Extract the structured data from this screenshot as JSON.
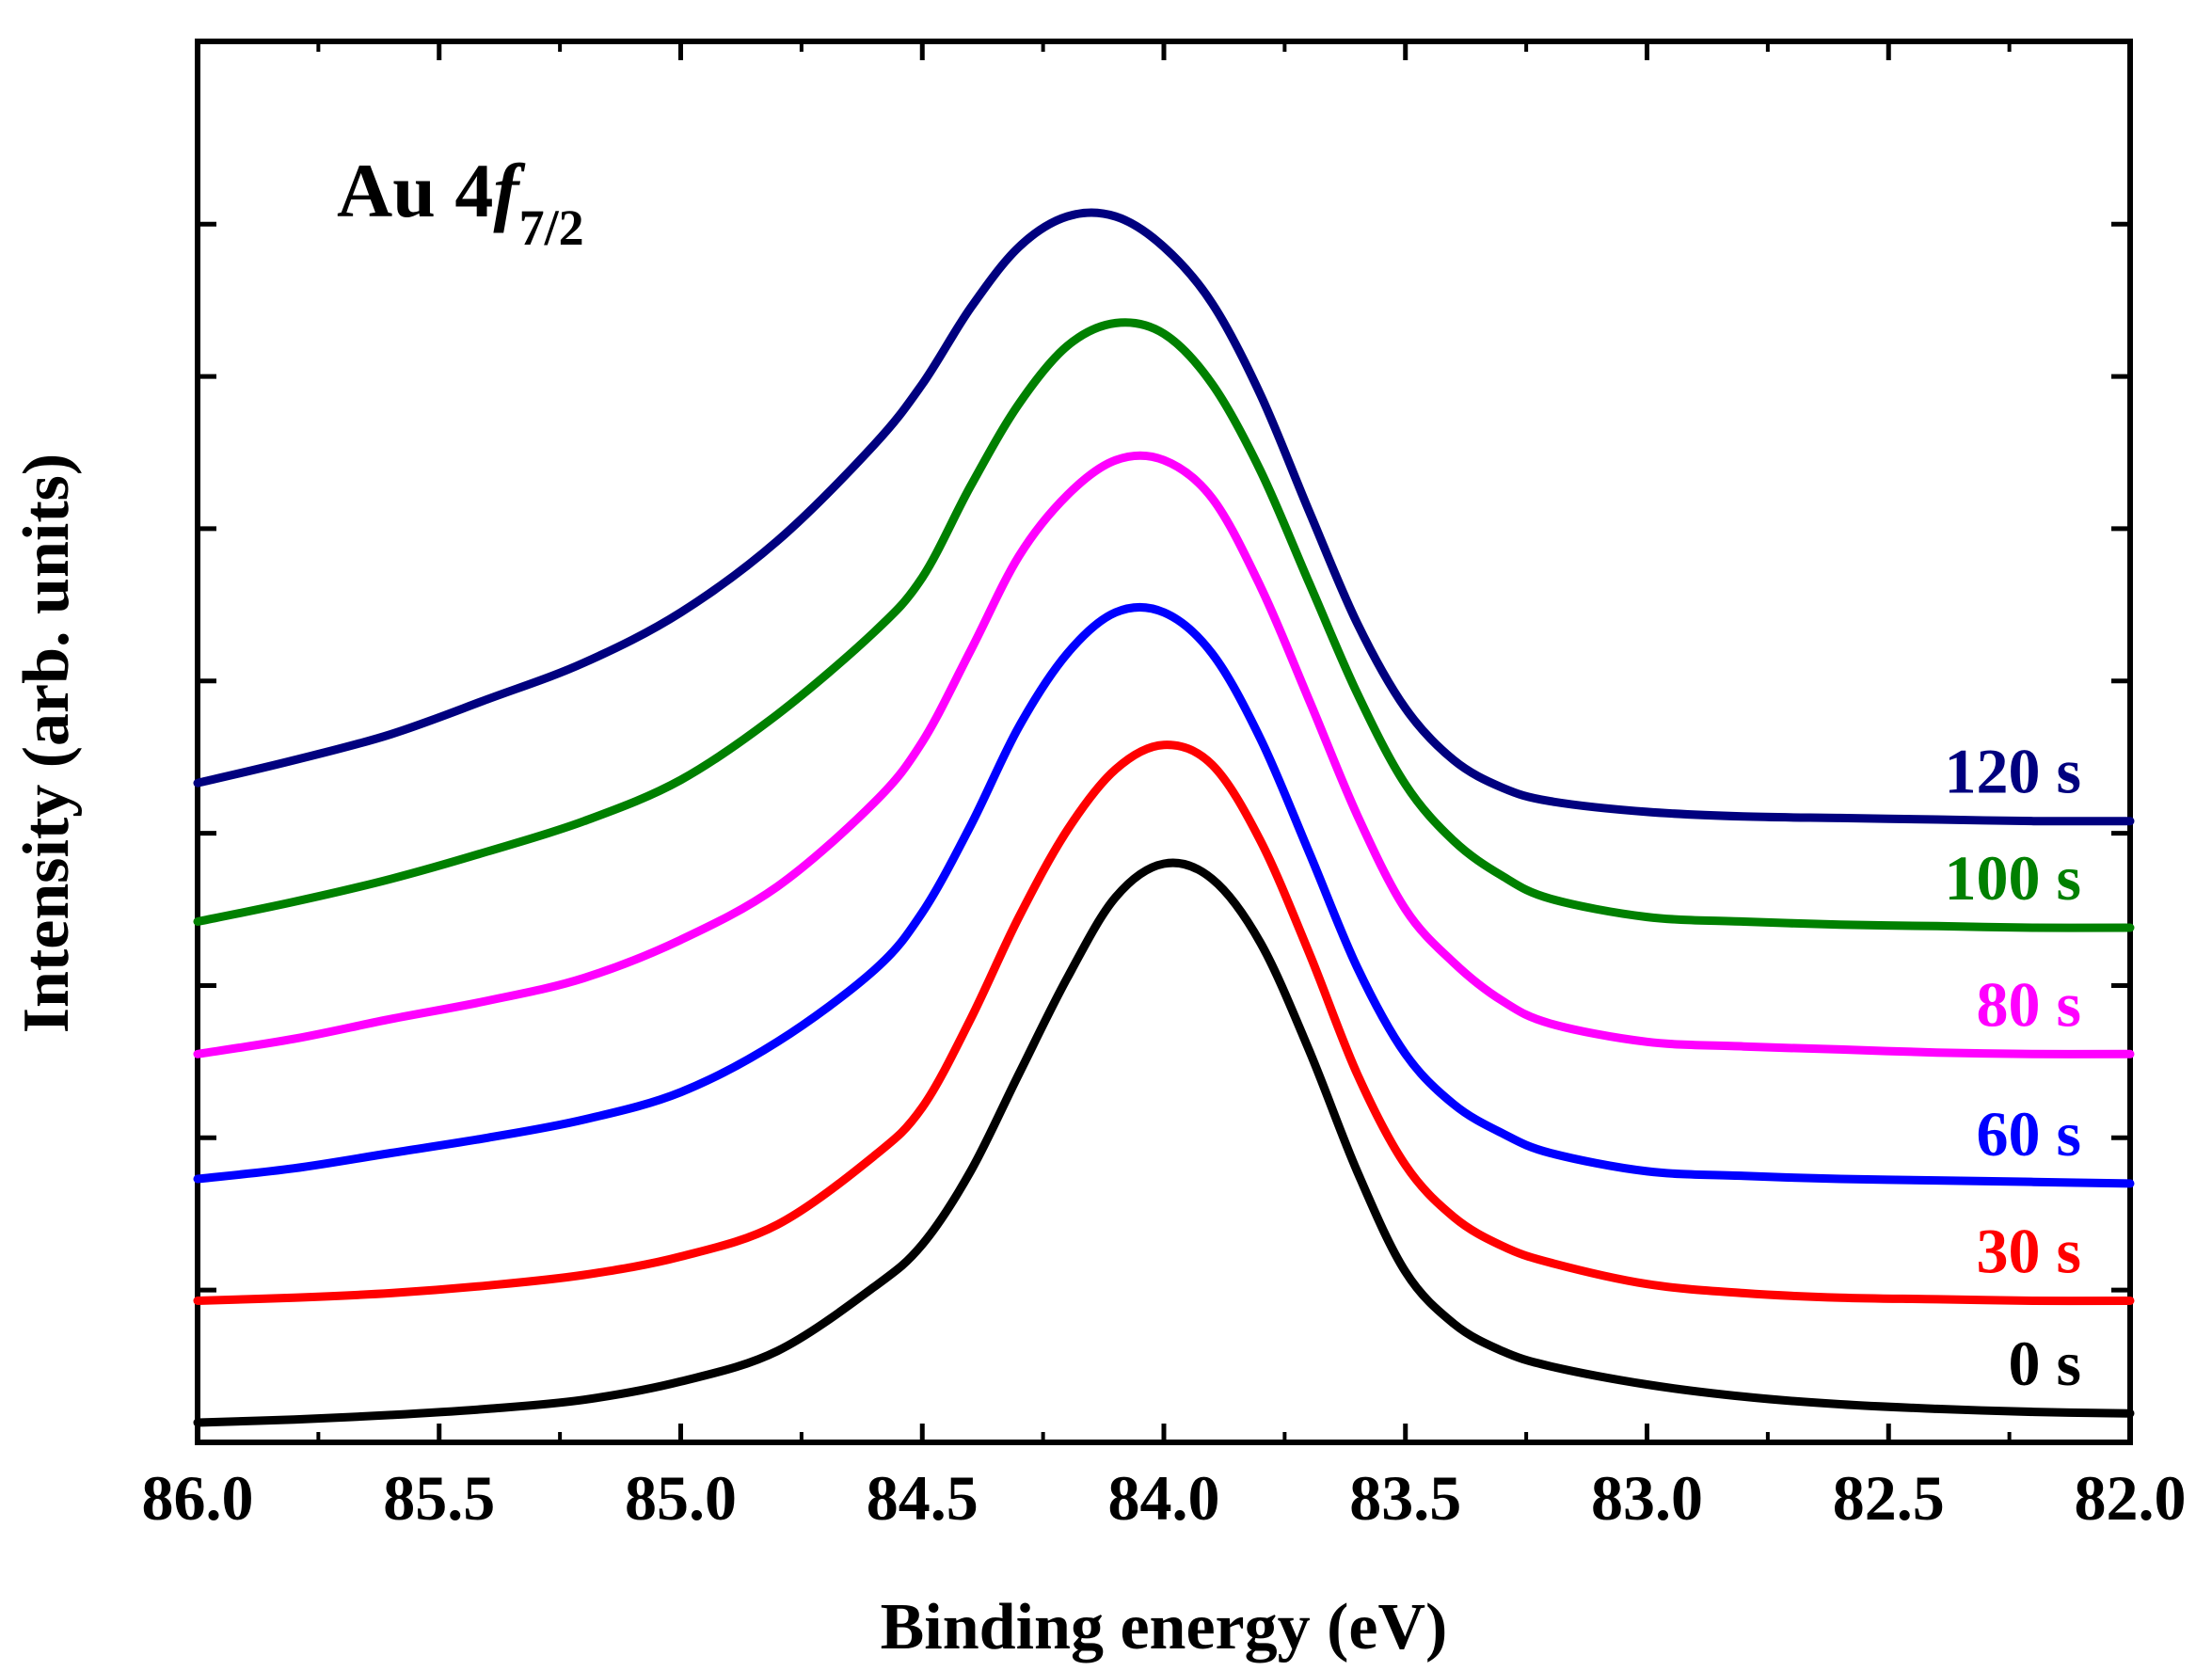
{
  "chart_data": {
    "type": "line",
    "title": "",
    "annotation": {
      "main": "Au 4",
      "italic": "f",
      "subscript": "7/2"
    },
    "xlabel": "Binding energy (eV)",
    "ylabel": "Intensity (arb. units)",
    "xlim": [
      86.0,
      82.0
    ],
    "ylim": [
      0.0,
      9.2
    ],
    "x_reversed": true,
    "xticks": [
      "86.0",
      "85.5",
      "85.0",
      "84.5",
      "84.0",
      "83.5",
      "83.0",
      "82.5",
      "82.0"
    ],
    "y_tick_values": [
      1,
      2,
      3,
      4,
      5,
      6,
      7,
      8
    ],
    "x": [
      86.0,
      85.8,
      85.6,
      85.4,
      85.2,
      85.0,
      84.8,
      84.6,
      84.5,
      84.4,
      84.3,
      84.2,
      84.1,
      84.0,
      83.9,
      83.8,
      83.7,
      83.6,
      83.5,
      83.4,
      83.3,
      83.2,
      83.0,
      82.8,
      82.6,
      82.4,
      82.2,
      82.0
    ],
    "series": [
      {
        "name": "0 s",
        "color": "#000000",
        "values": [
          0.13,
          0.15,
          0.18,
          0.22,
          0.28,
          0.4,
          0.6,
          1.02,
          1.3,
          1.78,
          2.42,
          3.05,
          3.58,
          3.8,
          3.7,
          3.28,
          2.58,
          1.78,
          1.12,
          0.78,
          0.6,
          0.5,
          0.38,
          0.3,
          0.25,
          0.22,
          0.2,
          0.19
        ]
      },
      {
        "name": "30 s",
        "color": "#ff0000",
        "values": [
          0.93,
          0.95,
          0.98,
          1.03,
          1.1,
          1.22,
          1.43,
          1.88,
          2.2,
          2.78,
          3.45,
          4.02,
          4.42,
          4.58,
          4.45,
          3.95,
          3.22,
          2.42,
          1.82,
          1.48,
          1.29,
          1.18,
          1.04,
          0.98,
          0.95,
          0.94,
          0.93,
          0.93
        ]
      },
      {
        "name": "60 s",
        "color": "#0000ff",
        "values": [
          1.73,
          1.8,
          1.9,
          2.0,
          2.12,
          2.3,
          2.63,
          3.1,
          3.48,
          4.05,
          4.7,
          5.18,
          5.45,
          5.45,
          5.18,
          4.62,
          3.88,
          3.12,
          2.55,
          2.22,
          2.03,
          1.9,
          1.78,
          1.75,
          1.73,
          1.72,
          1.71,
          1.7
        ]
      },
      {
        "name": "80 s",
        "color": "#ff00ff",
        "values": [
          2.55,
          2.65,
          2.78,
          2.9,
          3.05,
          3.3,
          3.65,
          4.2,
          4.6,
          5.2,
          5.82,
          6.22,
          6.45,
          6.45,
          6.2,
          5.62,
          4.88,
          4.12,
          3.5,
          3.15,
          2.9,
          2.75,
          2.63,
          2.6,
          2.58,
          2.56,
          2.55,
          2.55
        ]
      },
      {
        "name": "100 s",
        "color": "#008000",
        "values": [
          3.42,
          3.55,
          3.7,
          3.88,
          4.08,
          4.35,
          4.78,
          5.32,
          5.68,
          6.28,
          6.82,
          7.2,
          7.35,
          7.28,
          6.95,
          6.38,
          5.65,
          4.92,
          4.32,
          3.95,
          3.72,
          3.57,
          3.45,
          3.42,
          3.4,
          3.39,
          3.38,
          3.38
        ]
      },
      {
        "name": "120 s",
        "color": "#00007f",
        "values": [
          4.33,
          4.48,
          4.65,
          4.88,
          5.12,
          5.45,
          5.92,
          6.55,
          6.95,
          7.45,
          7.85,
          8.05,
          8.05,
          7.85,
          7.48,
          6.88,
          6.12,
          5.38,
          4.82,
          4.48,
          4.3,
          4.21,
          4.14,
          4.11,
          4.1,
          4.09,
          4.08,
          4.08
        ]
      }
    ]
  }
}
